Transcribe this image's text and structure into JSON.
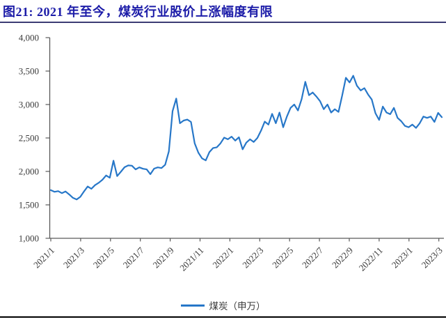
{
  "header": {
    "title": "图21: 2021 年至今，煤炭行业股价上涨幅度有限"
  },
  "legend": {
    "label": "煤炭（申万）"
  },
  "colors": {
    "title_text": "#1c1ca8",
    "title_rule": "#3c3c74",
    "series_line": "#2777C8",
    "axis_line": "#595959",
    "tick_label_text": "#3a3a3a",
    "bottom_rule": "#000000",
    "background": "#ffffff"
  },
  "chart_data": {
    "type": "line",
    "title": "图21: 2021 年至今，煤炭行业股价上涨幅度有限",
    "grid": false,
    "legend_position": "bottom",
    "ylim": [
      1000,
      4000
    ],
    "y_ticks": [
      1000,
      1500,
      2000,
      2500,
      3000,
      3500,
      4000
    ],
    "y_tick_labels": [
      "1,000",
      "1,500",
      "2,000",
      "2,500",
      "3,000",
      "3,500",
      "4,000"
    ],
    "x_tick_labels": [
      "2021/1",
      "2021/3",
      "2021/5",
      "2021/7",
      "2021/9",
      "2021/11",
      "2022/1",
      "2022/3",
      "2022/5",
      "2022/7",
      "2022/9",
      "2022/11",
      "2023/1",
      "2023/3"
    ],
    "x_tick_months": [
      0,
      2,
      4,
      6,
      8,
      10,
      12,
      14,
      16,
      18,
      20,
      22,
      24,
      26
    ],
    "x_unit": "months since 2021/1",
    "x_start": 0,
    "x_end": 26.2,
    "series": [
      {
        "name": "煤炭（申万）",
        "color": "#2777C8",
        "values": [
          1720,
          1695,
          1705,
          1675,
          1700,
          1655,
          1605,
          1580,
          1620,
          1700,
          1775,
          1740,
          1795,
          1830,
          1875,
          1940,
          1905,
          2160,
          1930,
          1995,
          2063,
          2090,
          2085,
          2030,
          2060,
          2040,
          2030,
          1958,
          2042,
          2060,
          2050,
          2100,
          2300,
          2900,
          3090,
          2720,
          2760,
          2775,
          2740,
          2420,
          2280,
          2195,
          2165,
          2290,
          2350,
          2360,
          2420,
          2505,
          2480,
          2520,
          2460,
          2510,
          2330,
          2430,
          2480,
          2440,
          2500,
          2610,
          2745,
          2700,
          2860,
          2720,
          2880,
          2660,
          2820,
          2950,
          3000,
          2910,
          3080,
          3340,
          3140,
          3180,
          3120,
          3050,
          2930,
          3000,
          2880,
          2930,
          2890,
          3135,
          3400,
          3330,
          3430,
          3280,
          3210,
          3245,
          3150,
          3075,
          2870,
          2770,
          2970,
          2880,
          2855,
          2950,
          2800,
          2750,
          2680,
          2660,
          2700,
          2650,
          2720,
          2820,
          2800,
          2820,
          2740,
          2875,
          2810
        ]
      }
    ]
  }
}
